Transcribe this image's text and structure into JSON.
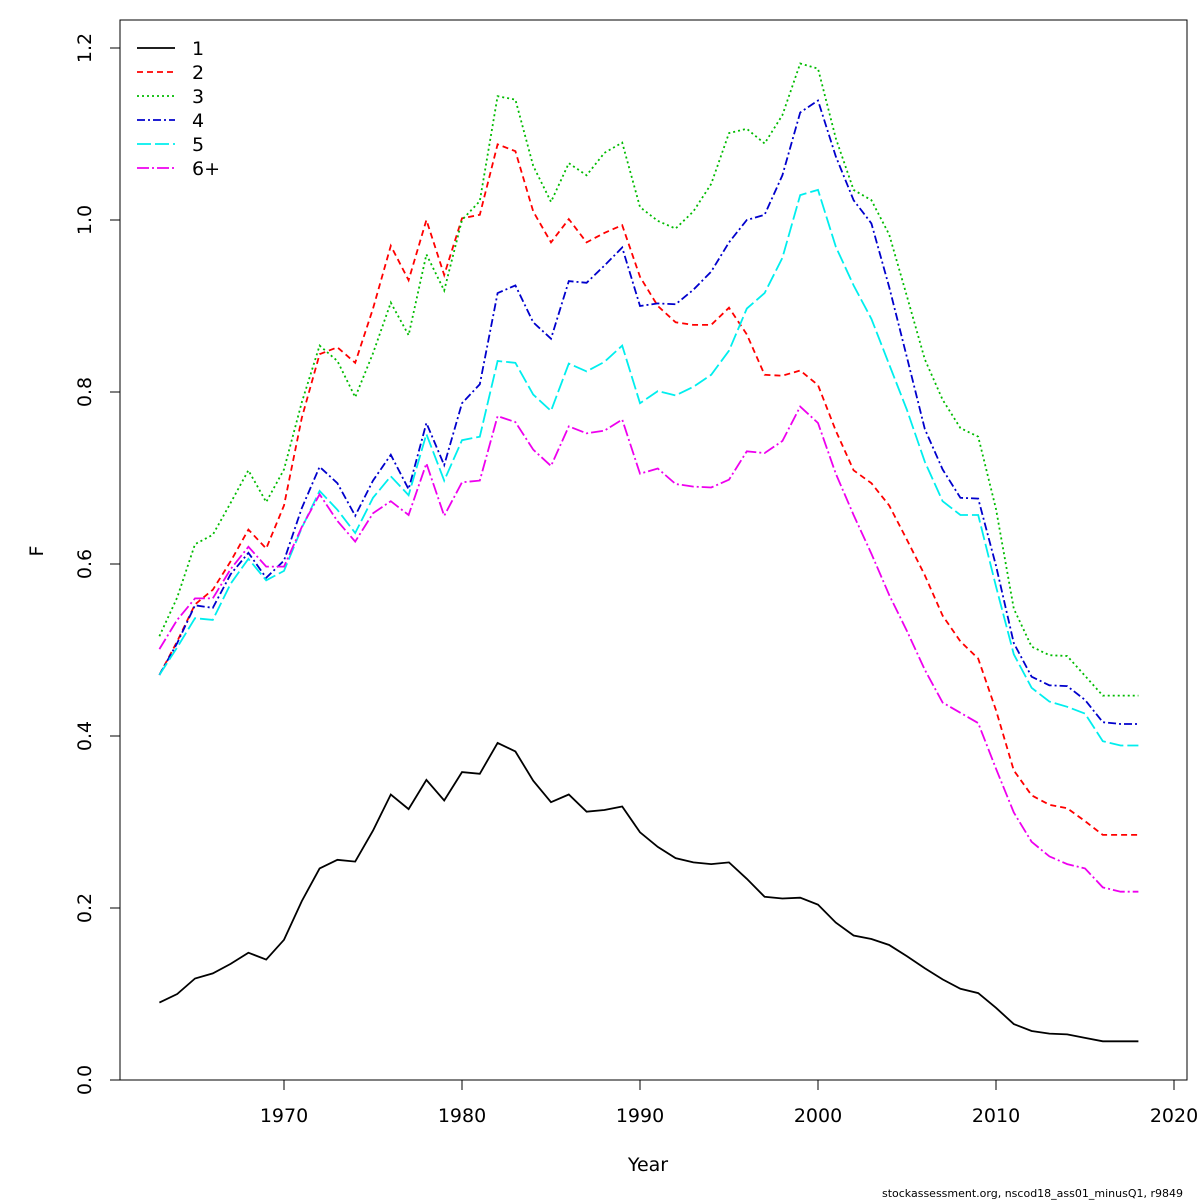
{
  "chart_data": {
    "type": "line",
    "title": "",
    "xlabel": "Year",
    "ylabel": "F",
    "xlim": [
      1963,
      2018
    ],
    "ylim": [
      0,
      1.2
    ],
    "x_ticks": [
      1970,
      1980,
      1990,
      2000,
      2010,
      2020
    ],
    "y_ticks": [
      0.0,
      0.2,
      0.4,
      0.6,
      0.8,
      1.0,
      1.2
    ],
    "x_tick_labels": [
      "1970",
      "1980",
      "1990",
      "2000",
      "2010",
      "2020"
    ],
    "y_tick_labels": [
      "0.0",
      "0.2",
      "0.4",
      "0.6",
      "0.8",
      "1.0",
      "1.2"
    ],
    "grid": false,
    "legend_position": "top-left",
    "caption": "stockassessment.org, nscod18_ass01_minusQ1, r9849",
    "x": [
      1963,
      1964,
      1965,
      1966,
      1967,
      1968,
      1969,
      1970,
      1971,
      1972,
      1973,
      1974,
      1975,
      1976,
      1977,
      1978,
      1979,
      1980,
      1981,
      1982,
      1983,
      1984,
      1985,
      1986,
      1987,
      1988,
      1989,
      1990,
      1991,
      1992,
      1993,
      1994,
      1995,
      1996,
      1997,
      1998,
      1999,
      2000,
      2001,
      2002,
      2003,
      2004,
      2005,
      2006,
      2007,
      2008,
      2009,
      2010,
      2011,
      2012,
      2013,
      2014,
      2015,
      2016,
      2017,
      2018
    ],
    "series": [
      {
        "name": "1",
        "color": "#000000",
        "dash": "",
        "values": [
          0.09,
          0.1,
          0.118,
          0.124,
          0.135,
          0.148,
          0.14,
          0.163,
          0.208,
          0.246,
          0.256,
          0.254,
          0.29,
          0.332,
          0.315,
          0.349,
          0.325,
          0.358,
          0.356,
          0.392,
          0.382,
          0.348,
          0.323,
          0.332,
          0.312,
          0.314,
          0.318,
          0.288,
          0.271,
          0.258,
          0.253,
          0.251,
          0.253,
          0.234,
          0.213,
          0.211,
          0.212,
          0.204,
          0.183,
          0.168,
          0.164,
          0.157,
          0.144,
          0.13,
          0.117,
          0.106,
          0.101,
          0.084,
          0.065,
          0.057,
          0.054,
          0.053,
          0.049,
          0.045,
          0.045,
          0.045
        ]
      },
      {
        "name": "2",
        "color": "#ff0000",
        "dash": "6,4",
        "values": [
          0.471,
          0.51,
          0.553,
          0.57,
          0.603,
          0.64,
          0.618,
          0.668,
          0.77,
          0.844,
          0.852,
          0.834,
          0.897,
          0.97,
          0.93,
          1.0,
          0.936,
          1.002,
          1.006,
          1.088,
          1.08,
          1.01,
          0.974,
          1.001,
          0.974,
          0.985,
          0.994,
          0.934,
          0.9,
          0.881,
          0.878,
          0.878,
          0.898,
          0.867,
          0.82,
          0.819,
          0.825,
          0.808,
          0.755,
          0.709,
          0.694,
          0.668,
          0.628,
          0.587,
          0.54,
          0.51,
          0.49,
          0.43,
          0.36,
          0.331,
          0.32,
          0.316,
          0.301,
          0.285,
          0.285,
          0.285
        ]
      },
      {
        "name": "3",
        "color": "#00bb00",
        "dash": "2,3",
        "values": [
          0.516,
          0.561,
          0.623,
          0.634,
          0.671,
          0.709,
          0.672,
          0.71,
          0.788,
          0.854,
          0.836,
          0.794,
          0.845,
          0.904,
          0.866,
          0.96,
          0.918,
          1.0,
          1.022,
          1.144,
          1.14,
          1.063,
          1.021,
          1.066,
          1.052,
          1.078,
          1.09,
          1.015,
          0.999,
          0.99,
          1.01,
          1.042,
          1.101,
          1.106,
          1.089,
          1.122,
          1.182,
          1.176,
          1.095,
          1.035,
          1.023,
          0.983,
          0.911,
          0.838,
          0.791,
          0.758,
          0.748,
          0.664,
          0.548,
          0.504,
          0.494,
          0.493,
          0.47,
          0.447,
          0.447,
          0.447
        ]
      },
      {
        "name": "4",
        "color": "#0000cc",
        "dash": "8,3,2,3",
        "values": [
          0.471,
          0.508,
          0.552,
          0.549,
          0.588,
          0.613,
          0.584,
          0.604,
          0.665,
          0.713,
          0.694,
          0.656,
          0.697,
          0.727,
          0.687,
          0.764,
          0.715,
          0.787,
          0.809,
          0.915,
          0.924,
          0.881,
          0.862,
          0.929,
          0.927,
          0.947,
          0.968,
          0.9,
          0.903,
          0.902,
          0.919,
          0.94,
          0.974,
          1.0,
          1.006,
          1.052,
          1.125,
          1.139,
          1.074,
          1.023,
          0.996,
          0.922,
          0.84,
          0.757,
          0.71,
          0.677,
          0.676,
          0.598,
          0.508,
          0.469,
          0.459,
          0.458,
          0.442,
          0.416,
          0.414,
          0.414
        ]
      },
      {
        "name": "5",
        "color": "#00eeee",
        "dash": "14,4",
        "values": [
          0.471,
          0.503,
          0.537,
          0.535,
          0.577,
          0.606,
          0.581,
          0.592,
          0.642,
          0.685,
          0.663,
          0.636,
          0.677,
          0.702,
          0.68,
          0.751,
          0.697,
          0.744,
          0.748,
          0.836,
          0.834,
          0.797,
          0.778,
          0.833,
          0.824,
          0.835,
          0.854,
          0.787,
          0.801,
          0.796,
          0.806,
          0.82,
          0.848,
          0.897,
          0.915,
          0.956,
          1.029,
          1.035,
          0.969,
          0.924,
          0.885,
          0.832,
          0.779,
          0.719,
          0.673,
          0.657,
          0.657,
          0.574,
          0.495,
          0.456,
          0.44,
          0.434,
          0.426,
          0.394,
          0.389,
          0.389
        ]
      },
      {
        "name": "6+",
        "color": "#ee00ee",
        "dash": "12,3,2,3",
        "values": [
          0.501,
          0.535,
          0.56,
          0.56,
          0.594,
          0.62,
          0.597,
          0.597,
          0.643,
          0.681,
          0.65,
          0.626,
          0.659,
          0.673,
          0.657,
          0.717,
          0.656,
          0.695,
          0.697,
          0.772,
          0.765,
          0.733,
          0.714,
          0.76,
          0.752,
          0.755,
          0.768,
          0.705,
          0.711,
          0.693,
          0.69,
          0.689,
          0.698,
          0.731,
          0.729,
          0.743,
          0.783,
          0.764,
          0.705,
          0.657,
          0.612,
          0.564,
          0.522,
          0.477,
          0.439,
          0.427,
          0.415,
          0.362,
          0.311,
          0.277,
          0.26,
          0.251,
          0.246,
          0.224,
          0.219,
          0.219
        ]
      }
    ]
  }
}
